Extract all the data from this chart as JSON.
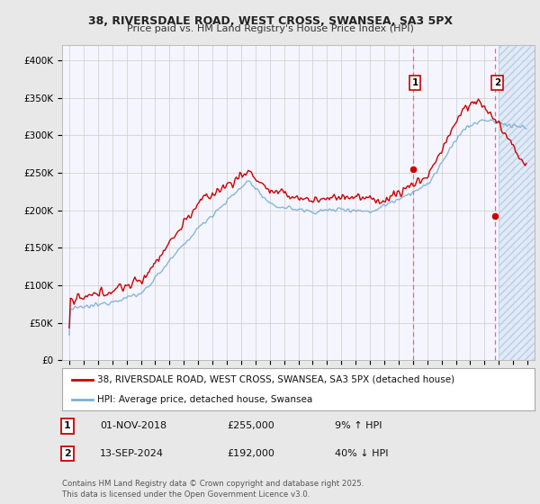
{
  "title1": "38, RIVERSDALE ROAD, WEST CROSS, SWANSEA, SA3 5PX",
  "title2": "Price paid vs. HM Land Registry's House Price Index (HPI)",
  "ylim": [
    0,
    420000
  ],
  "yticks": [
    0,
    50000,
    100000,
    150000,
    200000,
    250000,
    300000,
    350000,
    400000
  ],
  "ytick_labels": [
    "£0",
    "£50K",
    "£100K",
    "£150K",
    "£200K",
    "£250K",
    "£300K",
    "£350K",
    "£400K"
  ],
  "xlim_start": 1994.5,
  "xlim_end": 2027.5,
  "fig_bg_color": "#e8e8e8",
  "plot_bg_color": "#f5f5ff",
  "hpi_color": "#7ab0d4",
  "price_color": "#cc0000",
  "dashed_line_color": "#e07070",
  "hatch_bg_color": "#dce8f5",
  "marker1_x": 2019.0,
  "marker1_y": 255000,
  "marker2_x": 2024.75,
  "marker2_y": 192000,
  "legend_line1": "38, RIVERSDALE ROAD, WEST CROSS, SWANSEA, SA3 5PX (detached house)",
  "legend_line2": "HPI: Average price, detached house, Swansea",
  "ann1_num": "1",
  "ann1_date": "01-NOV-2018",
  "ann1_price": "£255,000",
  "ann1_hpi": "9% ↑ HPI",
  "ann2_num": "2",
  "ann2_date": "13-SEP-2024",
  "ann2_price": "£192,000",
  "ann2_hpi": "40% ↓ HPI",
  "footer": "Contains HM Land Registry data © Crown copyright and database right 2025.\nThis data is licensed under the Open Government Licence v3.0.",
  "hatch_region_start": 2025.0,
  "hatch_region_end": 2027.5
}
